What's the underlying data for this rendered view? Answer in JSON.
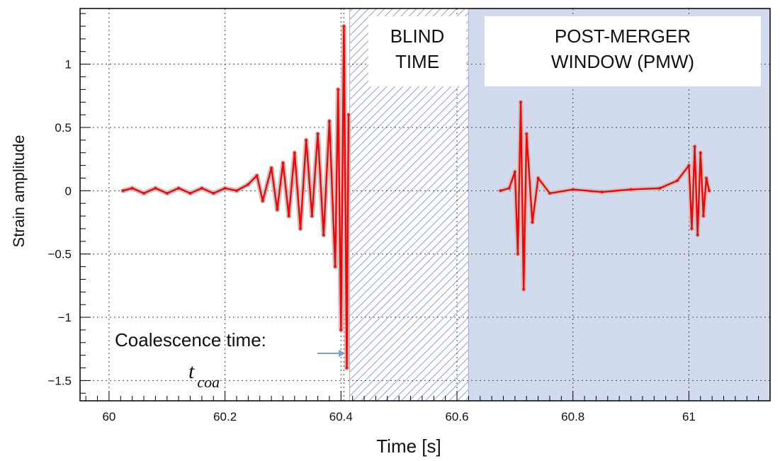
{
  "chart_data": {
    "type": "line",
    "xlabel": "Time [s]",
    "ylabel": "Strain amplitude",
    "xlim": [
      59.95,
      61.14
    ],
    "ylim": [
      -1.66,
      1.44
    ],
    "x_ticks": [
      60,
      60.2,
      60.4,
      60.6,
      60.8,
      61
    ],
    "x_tick_labels": [
      "60",
      "60.2",
      "60.4",
      "60.6",
      "60.8",
      "61"
    ],
    "y_ticks": [
      -1.5,
      -1,
      -0.5,
      0,
      0.5,
      1
    ],
    "y_tick_labels": [
      "−1.5",
      "−1",
      "−0.5",
      "0",
      "0.5",
      "1"
    ],
    "grid": true,
    "regions": [
      {
        "name": "blind-time",
        "label_lines": [
          "BLIND",
          "TIME"
        ],
        "x_start": 60.415,
        "x_end": 60.62,
        "style": "hatched"
      },
      {
        "name": "post-merger-window",
        "label_lines": [
          "POST-MERGER",
          "WINDOW (PMW)"
        ],
        "x_start": 60.62,
        "x_end": 61.14,
        "style": "shaded"
      }
    ],
    "coalescence": {
      "x": 60.405,
      "label": "Coalescence time:",
      "symbol": "t",
      "subscript": "coa"
    },
    "series": [
      {
        "name": "",
        "color": "#ff0000",
        "uncertainty_color": "#c7c7c7",
        "segments": [
          {
            "x": [
              60.024,
              60.04,
              60.06,
              60.08,
              60.1,
              60.12,
              60.14,
              60.16,
              60.18,
              60.2,
              60.22,
              60.24,
              60.255,
              60.265,
              60.28,
              60.29,
              60.3,
              60.31,
              60.32,
              60.33,
              60.34,
              60.35,
              60.36,
              60.37,
              60.38,
              60.39,
              60.395,
              60.4,
              60.405,
              60.41,
              60.413
            ],
            "y": [
              0.0,
              0.02,
              -0.02,
              0.02,
              -0.02,
              0.02,
              -0.02,
              0.02,
              -0.02,
              0.02,
              0.0,
              0.05,
              0.12,
              -0.08,
              0.18,
              -0.15,
              0.22,
              -0.2,
              0.3,
              -0.3,
              0.4,
              -0.2,
              0.45,
              -0.35,
              0.55,
              -0.6,
              0.8,
              -1.1,
              1.3,
              -1.4,
              0.6
            ]
          },
          {
            "x": [
              60.675,
              60.69,
              60.7,
              60.705,
              60.71,
              60.715,
              60.72,
              60.73,
              60.74,
              60.76,
              60.8,
              60.85,
              60.9,
              60.95,
              60.98,
              61.0,
              61.005,
              61.01,
              61.015,
              61.02,
              61.025,
              61.03,
              61.035
            ],
            "y": [
              0.0,
              0.02,
              0.15,
              -0.5,
              0.7,
              -0.78,
              0.45,
              -0.25,
              0.1,
              -0.02,
              0.01,
              -0.01,
              0.01,
              0.02,
              0.08,
              0.2,
              -0.3,
              0.35,
              -0.35,
              0.3,
              -0.2,
              0.1,
              0.0
            ]
          }
        ]
      }
    ]
  }
}
